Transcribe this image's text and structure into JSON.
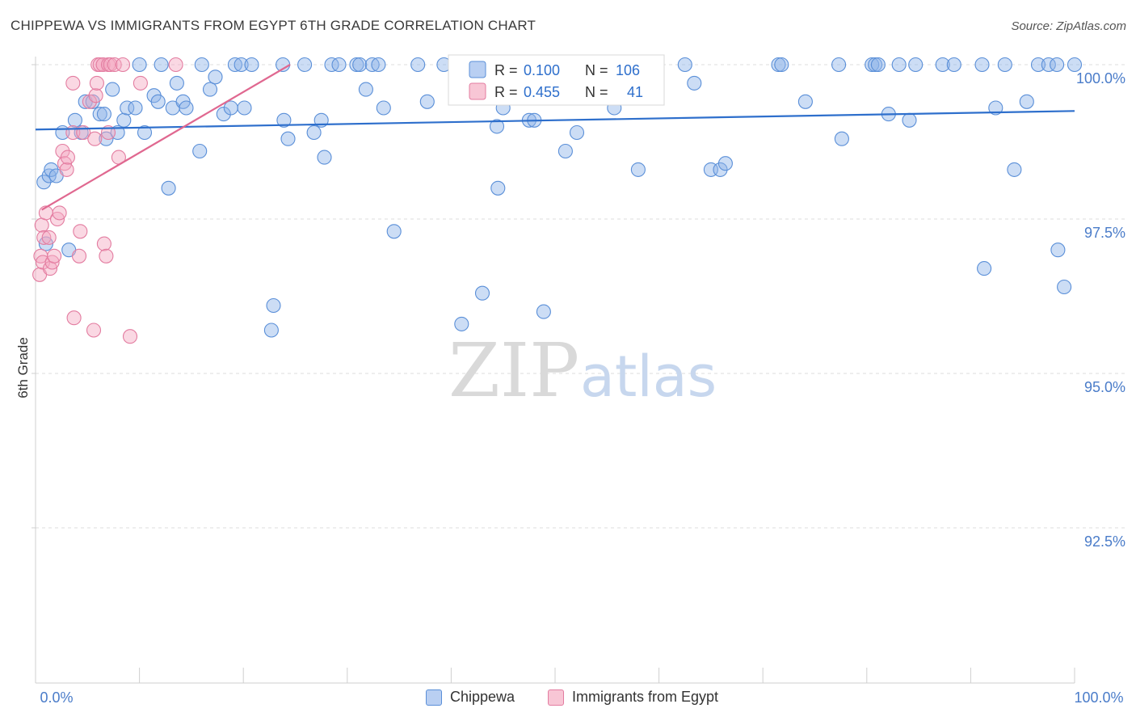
{
  "title": "CHIPPEWA VS IMMIGRANTS FROM EGYPT 6TH GRADE CORRELATION CHART",
  "source": "Source: ZipAtlas.com",
  "watermark": {
    "zip": "ZIP",
    "atlas": "atlas"
  },
  "colors": {
    "blue": "#8fb4e8",
    "blue_stroke": "#5a8fd8",
    "blue_line": "#2e6fcc",
    "pink": "#f4a9c0",
    "pink_stroke": "#e37ca0",
    "pink_line": "#e06890",
    "tick_label": "#4a7cc9",
    "grid": "#dcdcdc"
  },
  "stats": {
    "chippewa": {
      "r_label": "R = ",
      "r_value": "0.100",
      "n_label": "N = ",
      "n_value": "106"
    },
    "egypt": {
      "r_label": "R = ",
      "r_value": "0.455",
      "n_label": "N = ",
      "n_value": "41"
    }
  },
  "legend": {
    "chippewa": "Chippewa",
    "egypt": "Immigrants from Egypt"
  },
  "chart_data": {
    "type": "scatter",
    "title": "CHIPPEWA VS IMMIGRANTS FROM EGYPT 6TH GRADE CORRELATION CHART",
    "xlabel": "",
    "ylabel": "6th Grade",
    "xlim": [
      0,
      100
    ],
    "ylim": [
      90.0,
      100.4
    ],
    "x_tick_labels": [
      "0.0%",
      "100.0%"
    ],
    "y_ticks": [
      {
        "value": 100.0,
        "label": "100.0%"
      },
      {
        "value": 97.5,
        "label": "97.5%"
      },
      {
        "value": 95.0,
        "label": "95.0%"
      },
      {
        "value": 92.5,
        "label": "92.5%"
      }
    ],
    "series": [
      {
        "name": "Chippewa",
        "color": "#8fb4e8",
        "trend": [
          [
            0.0,
            98.95
          ],
          [
            100.0,
            99.25
          ]
        ],
        "points": [
          [
            0.8,
            98.1
          ],
          [
            1.0,
            97.1
          ],
          [
            1.3,
            98.2
          ],
          [
            1.5,
            98.3
          ],
          [
            2.0,
            98.2
          ],
          [
            2.6,
            98.9
          ],
          [
            3.2,
            97.0
          ],
          [
            3.8,
            99.1
          ],
          [
            4.4,
            98.9
          ],
          [
            4.8,
            99.4
          ],
          [
            5.5,
            99.4
          ],
          [
            6.2,
            99.2
          ],
          [
            6.6,
            99.2
          ],
          [
            6.8,
            98.8
          ],
          [
            7.4,
            99.6
          ],
          [
            7.9,
            98.9
          ],
          [
            8.5,
            99.1
          ],
          [
            8.8,
            99.3
          ],
          [
            9.6,
            99.3
          ],
          [
            10.0,
            100.0
          ],
          [
            10.5,
            98.9
          ],
          [
            11.4,
            99.5
          ],
          [
            11.8,
            99.4
          ],
          [
            12.1,
            100.0
          ],
          [
            12.8,
            98.0
          ],
          [
            13.2,
            99.3
          ],
          [
            13.6,
            99.7
          ],
          [
            14.2,
            99.4
          ],
          [
            14.5,
            99.3
          ],
          [
            15.8,
            98.6
          ],
          [
            16.0,
            100.0
          ],
          [
            16.8,
            99.6
          ],
          [
            17.3,
            99.8
          ],
          [
            18.1,
            99.2
          ],
          [
            18.8,
            99.3
          ],
          [
            19.2,
            100.0
          ],
          [
            19.8,
            100.0
          ],
          [
            20.1,
            99.3
          ],
          [
            20.8,
            100.0
          ],
          [
            22.7,
            95.7
          ],
          [
            22.9,
            96.1
          ],
          [
            23.8,
            100.0
          ],
          [
            23.9,
            99.1
          ],
          [
            24.3,
            98.8
          ],
          [
            25.9,
            100.0
          ],
          [
            26.8,
            98.9
          ],
          [
            27.5,
            99.1
          ],
          [
            27.8,
            98.5
          ],
          [
            28.5,
            100.0
          ],
          [
            29.2,
            100.0
          ],
          [
            30.9,
            100.0
          ],
          [
            31.2,
            100.0
          ],
          [
            31.8,
            99.6
          ],
          [
            32.4,
            100.0
          ],
          [
            33.0,
            100.0
          ],
          [
            33.5,
            99.3
          ],
          [
            34.5,
            97.3
          ],
          [
            36.8,
            100.0
          ],
          [
            37.7,
            99.4
          ],
          [
            39.3,
            100.0
          ],
          [
            41.0,
            95.8
          ],
          [
            43.0,
            96.3
          ],
          [
            44.4,
            99.0
          ],
          [
            44.5,
            98.0
          ],
          [
            45.0,
            99.3
          ],
          [
            47.5,
            99.1
          ],
          [
            48.0,
            99.1
          ],
          [
            48.9,
            96.0
          ],
          [
            50.2,
            100.0
          ],
          [
            51.0,
            98.6
          ],
          [
            52.1,
            98.9
          ],
          [
            52.5,
            100.0
          ],
          [
            54.5,
            100.0
          ],
          [
            55.7,
            99.3
          ],
          [
            58.0,
            98.3
          ],
          [
            62.5,
            100.0
          ],
          [
            63.4,
            99.7
          ],
          [
            65.0,
            98.3
          ],
          [
            65.9,
            98.3
          ],
          [
            66.4,
            98.4
          ],
          [
            71.5,
            100.0
          ],
          [
            71.8,
            100.0
          ],
          [
            74.1,
            99.4
          ],
          [
            77.3,
            100.0
          ],
          [
            77.6,
            98.8
          ],
          [
            80.5,
            100.0
          ],
          [
            80.8,
            100.0
          ],
          [
            81.1,
            100.0
          ],
          [
            82.1,
            99.2
          ],
          [
            83.1,
            100.0
          ],
          [
            84.1,
            99.1
          ],
          [
            84.7,
            100.0
          ],
          [
            87.3,
            100.0
          ],
          [
            88.4,
            100.0
          ],
          [
            91.1,
            100.0
          ],
          [
            91.3,
            96.7
          ],
          [
            92.4,
            99.3
          ],
          [
            93.3,
            100.0
          ],
          [
            94.2,
            98.3
          ],
          [
            95.4,
            99.4
          ],
          [
            96.5,
            100.0
          ],
          [
            97.5,
            100.0
          ],
          [
            98.3,
            100.0
          ],
          [
            98.4,
            97.0
          ],
          [
            99.0,
            96.4
          ],
          [
            100.0,
            100.0
          ]
        ]
      },
      {
        "name": "Immigrants from Egypt",
        "color": "#f4a9c0",
        "trend": [
          [
            0.6,
            97.65
          ],
          [
            24.5,
            100.0
          ]
        ],
        "points": [
          [
            0.4,
            96.6
          ],
          [
            0.5,
            96.9
          ],
          [
            0.6,
            97.4
          ],
          [
            0.7,
            96.8
          ],
          [
            0.8,
            97.2
          ],
          [
            1.0,
            97.6
          ],
          [
            1.3,
            97.2
          ],
          [
            1.4,
            96.7
          ],
          [
            1.6,
            96.8
          ],
          [
            1.8,
            96.9
          ],
          [
            2.1,
            97.5
          ],
          [
            2.3,
            97.6
          ],
          [
            2.6,
            98.6
          ],
          [
            2.8,
            98.4
          ],
          [
            3.0,
            98.3
          ],
          [
            3.1,
            98.5
          ],
          [
            3.6,
            99.7
          ],
          [
            3.6,
            98.9
          ],
          [
            3.7,
            95.9
          ],
          [
            4.2,
            96.9
          ],
          [
            4.3,
            97.3
          ],
          [
            4.6,
            98.9
          ],
          [
            5.2,
            99.4
          ],
          [
            5.6,
            95.7
          ],
          [
            5.7,
            98.8
          ],
          [
            5.8,
            99.5
          ],
          [
            5.9,
            99.7
          ],
          [
            6.0,
            100.0
          ],
          [
            6.2,
            100.0
          ],
          [
            6.5,
            100.0
          ],
          [
            6.6,
            97.1
          ],
          [
            6.8,
            96.9
          ],
          [
            7.0,
            98.9
          ],
          [
            7.0,
            100.0
          ],
          [
            7.2,
            100.0
          ],
          [
            7.6,
            100.0
          ],
          [
            8.0,
            98.5
          ],
          [
            8.4,
            100.0
          ],
          [
            9.1,
            95.6
          ],
          [
            10.1,
            99.7
          ],
          [
            13.5,
            100.0
          ]
        ]
      }
    ]
  }
}
